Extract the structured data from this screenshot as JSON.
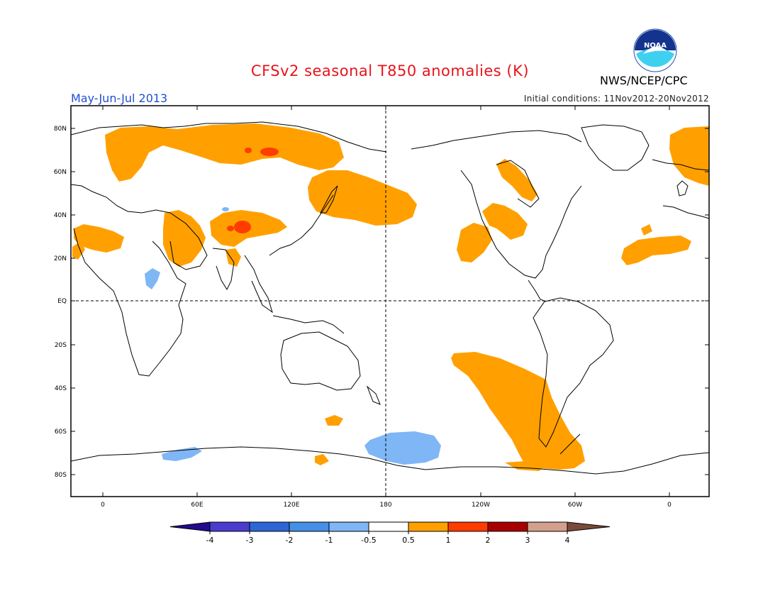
{
  "header": {
    "title": "CFSv2 seasonal T850 anomalies (K)",
    "season": "May-Jun-Jul 2013",
    "agency": "NWS/NCEP/CPC",
    "initial_conditions": "Initial conditions: 11Nov2012-20Nov2012",
    "logo_text": "NOAA"
  },
  "axes": {
    "lat_labels": [
      "80N",
      "60N",
      "40N",
      "20N",
      "EQ",
      "20S",
      "40S",
      "60S",
      "80S"
    ],
    "lon_labels": [
      "0",
      "60E",
      "120E",
      "180",
      "120W",
      "60W",
      "0"
    ]
  },
  "colorbar": {
    "labels": [
      "-4",
      "-3",
      "-2",
      "-1",
      "-0.5",
      "0.5",
      "1",
      "2",
      "3",
      "4"
    ],
    "colors": [
      "#240a8c",
      "#4a3ccf",
      "#2d66d4",
      "#4590e6",
      "#7fb6f5",
      "#ffffff",
      "#ffa000",
      "#ff3c00",
      "#a80000",
      "#d2a08c",
      "#7a4a3a"
    ]
  },
  "colors": {
    "warm_anomaly": "#ffa000",
    "strong_warm": "#ff3c00",
    "cool_anomaly": "#7fb6f5"
  }
}
